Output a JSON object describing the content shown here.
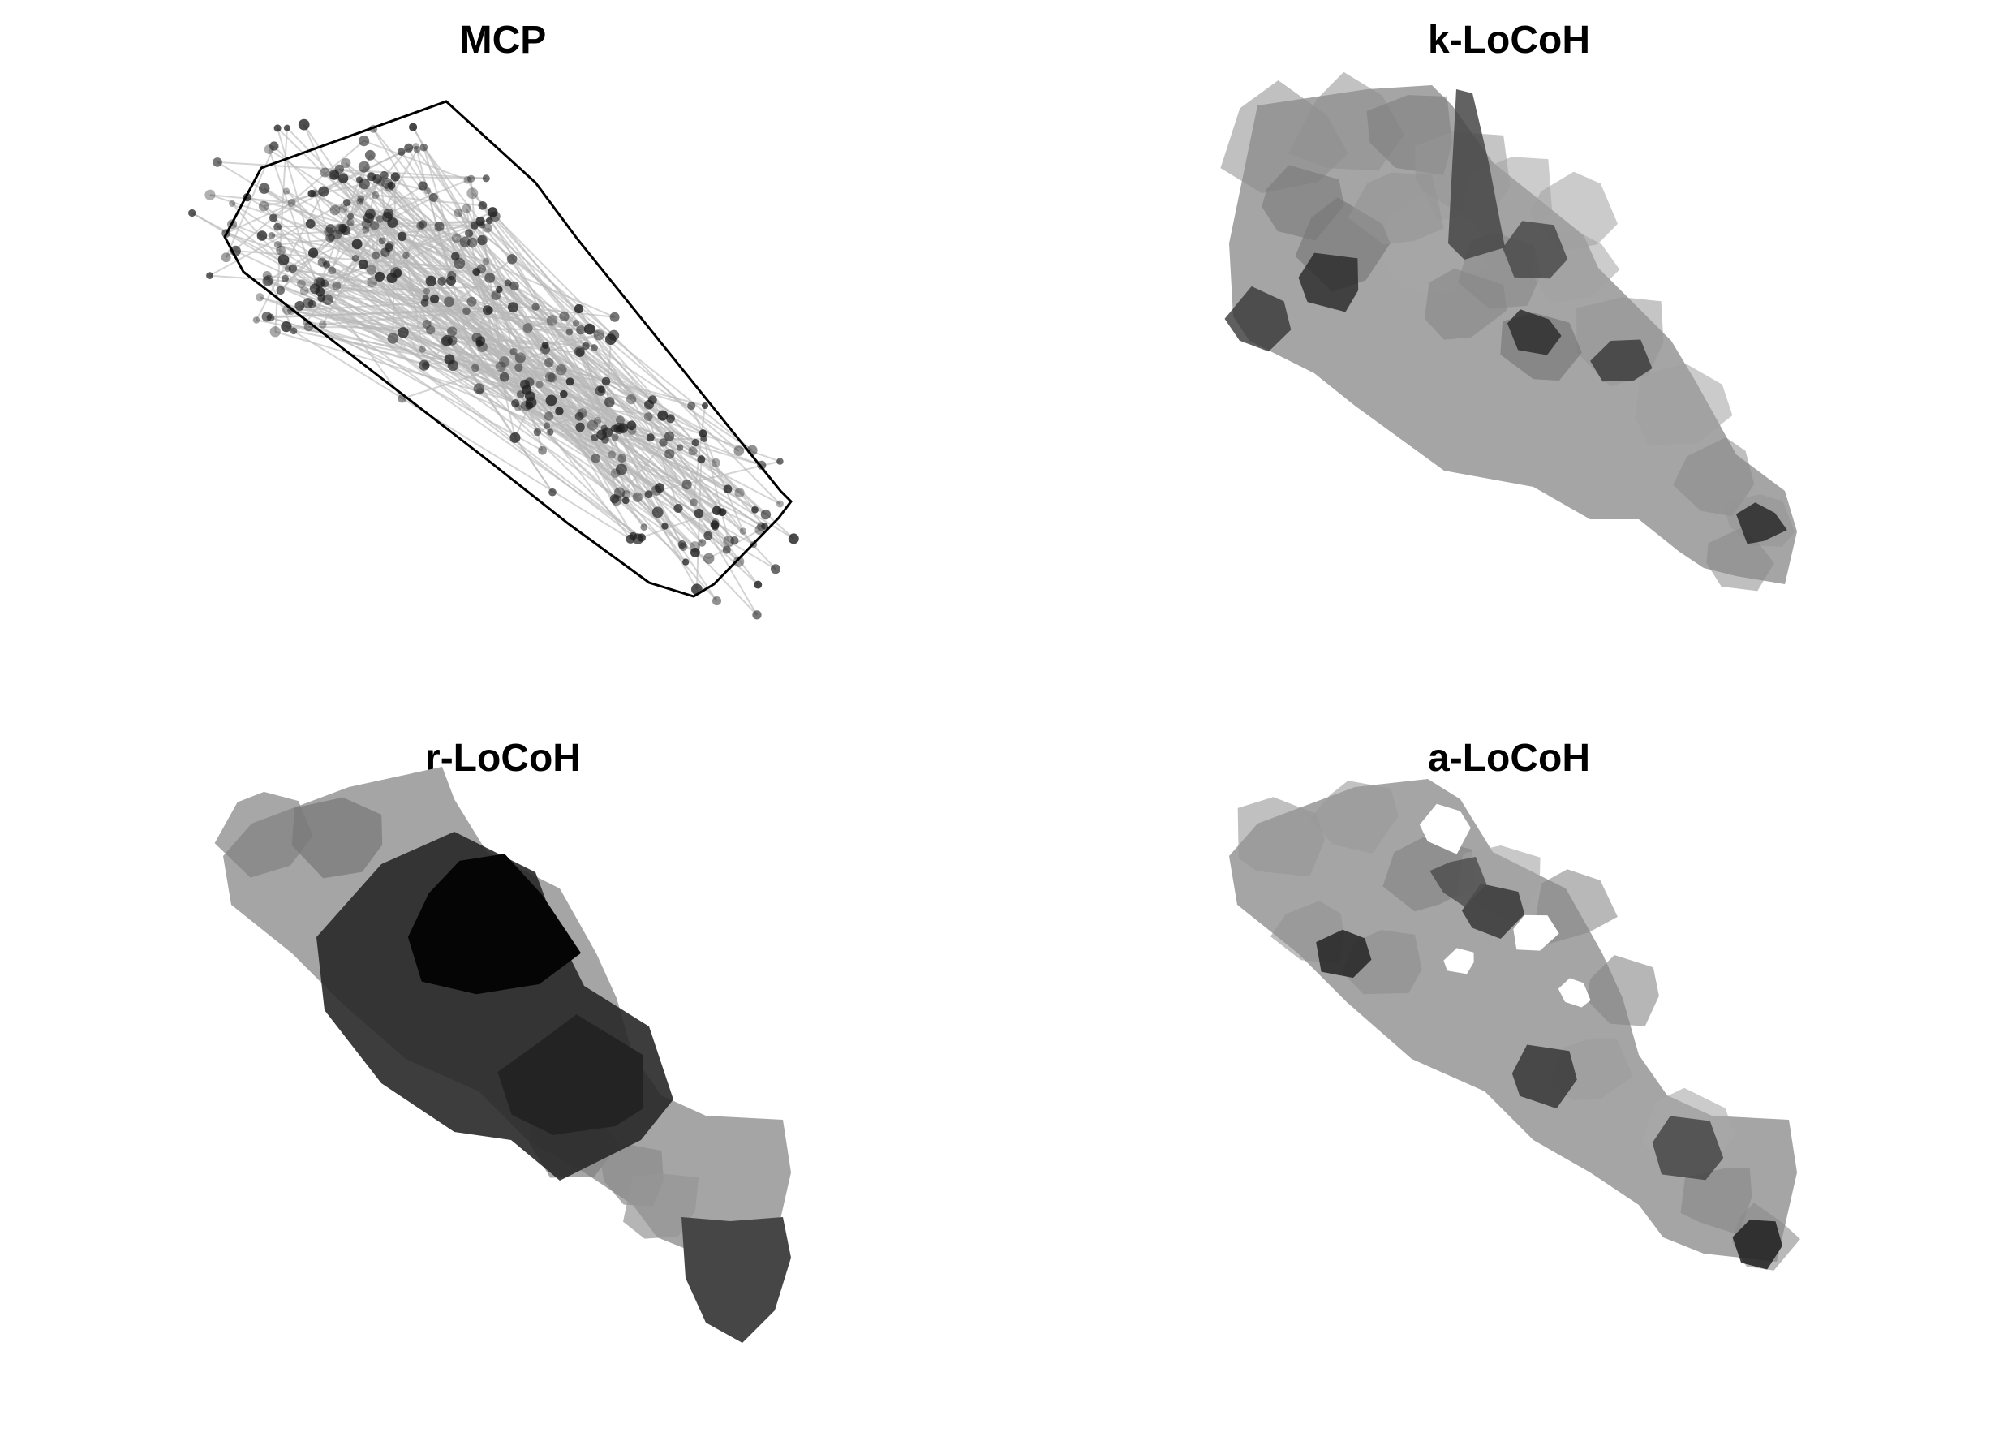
{
  "figure": {
    "panels": [
      {
        "id": "mcp",
        "title": "MCP"
      },
      {
        "id": "k-locoh",
        "title": "k-LoCoH"
      },
      {
        "id": "r-locoh",
        "title": "r-LoCoH"
      },
      {
        "id": "a-locoh",
        "title": "a-LoCoH"
      }
    ]
  },
  "colors": {
    "background": "#ffffff",
    "hull_outline": "#000000",
    "track": "#c8c8c8",
    "fix": "#222222"
  }
}
